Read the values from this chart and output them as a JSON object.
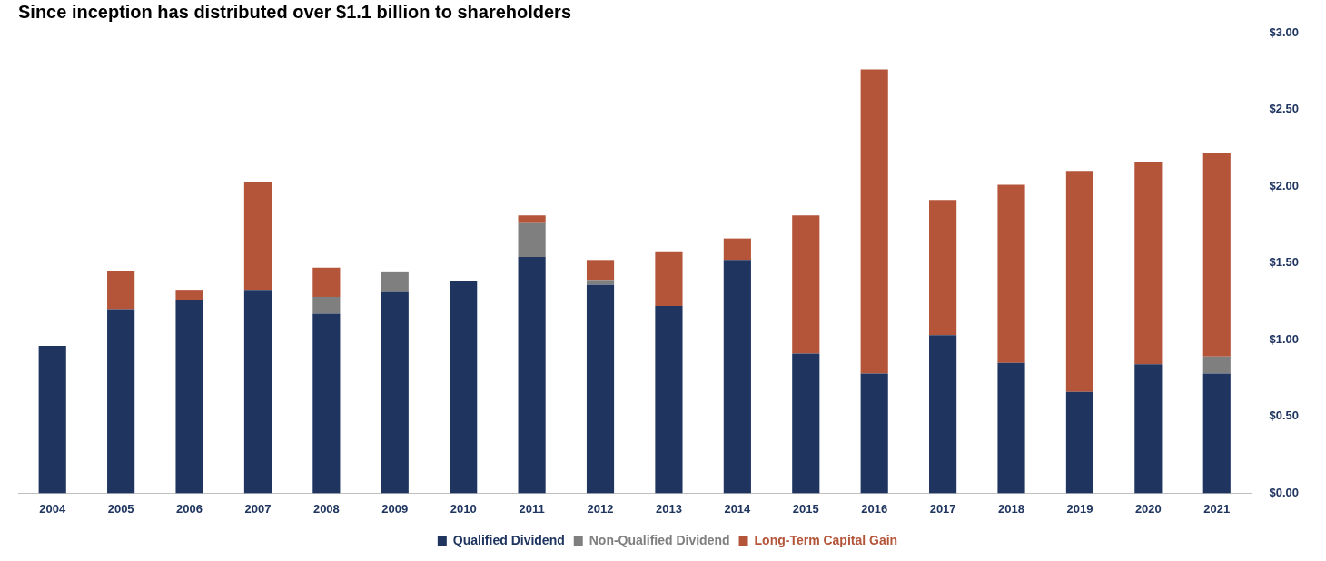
{
  "chart_data": {
    "type": "bar",
    "title": "Since inception has distributed over $1.1 billion to shareholders",
    "stacked": true,
    "categories": [
      "2004",
      "2005",
      "2006",
      "2007",
      "2008",
      "2009",
      "2010",
      "2011",
      "2012",
      "2013",
      "2014",
      "2015",
      "2016",
      "2017",
      "2018",
      "2019",
      "2020",
      "2021"
    ],
    "series": [
      {
        "name": "Qualified Dividend",
        "color": "#1f3560",
        "values": [
          0.96,
          1.2,
          1.26,
          1.32,
          1.17,
          1.31,
          1.38,
          1.54,
          1.36,
          1.22,
          1.52,
          0.91,
          0.78,
          1.03,
          0.85,
          0.66,
          0.84,
          0.78
        ]
      },
      {
        "name": "Non-Qualified Dividend",
        "color": "#7f7f7f",
        "values": [
          0,
          0,
          0,
          0,
          0.11,
          0.13,
          0,
          0.22,
          0.03,
          0,
          0,
          0,
          0,
          0,
          0,
          0,
          0,
          0.11
        ]
      },
      {
        "name": "Long-Term Capital Gain",
        "color": "#b4553a",
        "values": [
          0,
          0.25,
          0.06,
          0.71,
          0.19,
          0,
          0,
          0.05,
          0.13,
          0.35,
          0.14,
          0.9,
          1.98,
          0.88,
          1.16,
          1.44,
          1.32,
          1.33
        ]
      }
    ],
    "ylim": [
      0,
      3
    ],
    "yticks": [
      {
        "value": 0,
        "label": "$0.00"
      },
      {
        "value": 0.5,
        "label": "$0.50"
      },
      {
        "value": 1,
        "label": "$1.00"
      },
      {
        "value": 1.5,
        "label": "$1.50"
      },
      {
        "value": 2,
        "label": "$2.00"
      },
      {
        "value": 2.5,
        "label": "$2.50"
      },
      {
        "value": 3,
        "label": "$3.00"
      }
    ],
    "grid": false,
    "legend": "bottom"
  }
}
